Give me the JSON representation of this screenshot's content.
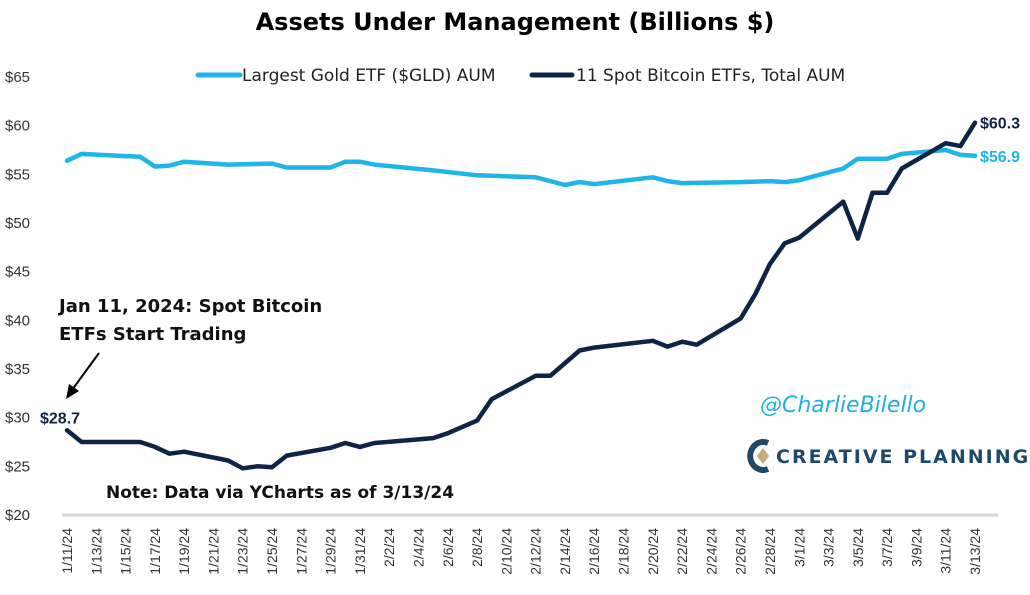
{
  "chart_data": {
    "type": "line",
    "title": "Assets Under Management (Billions $)",
    "xlabel": "",
    "ylabel": "",
    "ylim": [
      20,
      65
    ],
    "yticks": [
      "$20",
      "$25",
      "$30",
      "$35",
      "$40",
      "$45",
      "$50",
      "$55",
      "$60",
      "$65"
    ],
    "ytick_values": [
      20,
      25,
      30,
      35,
      40,
      45,
      50,
      55,
      60,
      65
    ],
    "x_unit": "days since 1/11/24",
    "xlim": [
      0,
      62
    ],
    "xticks": [
      "1/11/24",
      "1/13/24",
      "1/15/24",
      "1/17/24",
      "1/19/24",
      "1/21/24",
      "1/23/24",
      "1/25/24",
      "1/27/24",
      "1/29/24",
      "1/31/24",
      "2/2/24",
      "2/4/24",
      "2/6/24",
      "2/8/24",
      "2/10/24",
      "2/12/24",
      "2/14/24",
      "2/16/24",
      "2/18/24",
      "2/20/24",
      "2/22/24",
      "2/24/24",
      "2/26/24",
      "2/28/24",
      "3/1/24",
      "3/3/24",
      "3/5/24",
      "3/7/24",
      "3/9/24",
      "3/11/24",
      "3/13/24"
    ],
    "grid": false,
    "legend_position": "top",
    "series": [
      {
        "name": "Largest Gold ETF ($GLD) AUM",
        "color": "#1fb5e8",
        "end_label": "$56.9",
        "points": [
          [
            0,
            56.4
          ],
          [
            1,
            57.1
          ],
          [
            5,
            56.8
          ],
          [
            6,
            55.8
          ],
          [
            7,
            55.9
          ],
          [
            8,
            56.3
          ],
          [
            11,
            56.0
          ],
          [
            14,
            56.1
          ],
          [
            15,
            55.7
          ],
          [
            18,
            55.7
          ],
          [
            19,
            56.3
          ],
          [
            20,
            56.3
          ],
          [
            21,
            56.0
          ],
          [
            25,
            55.4
          ],
          [
            28,
            54.9
          ],
          [
            32,
            54.7
          ],
          [
            33,
            54.3
          ],
          [
            34,
            53.9
          ],
          [
            35,
            54.2
          ],
          [
            36,
            54.0
          ],
          [
            40,
            54.7
          ],
          [
            41,
            54.3
          ],
          [
            42,
            54.1
          ],
          [
            46,
            54.2
          ],
          [
            48,
            54.3
          ],
          [
            49,
            54.2
          ],
          [
            50,
            54.4
          ],
          [
            53,
            55.6
          ],
          [
            54,
            56.6
          ],
          [
            56,
            56.6
          ],
          [
            57,
            57.1
          ],
          [
            60,
            57.5
          ],
          [
            61,
            57.0
          ],
          [
            62,
            56.9
          ]
        ]
      },
      {
        "name": "11 Spot Bitcoin ETFs, Total AUM",
        "color": "#0d2447",
        "start_label": "$28.7",
        "end_label": "$60.3",
        "points": [
          [
            0,
            28.7
          ],
          [
            1,
            27.5
          ],
          [
            5,
            27.5
          ],
          [
            6,
            27.0
          ],
          [
            7,
            26.3
          ],
          [
            8,
            26.5
          ],
          [
            11,
            25.6
          ],
          [
            12,
            24.8
          ],
          [
            13,
            25.0
          ],
          [
            14,
            24.9
          ],
          [
            15,
            26.1
          ],
          [
            18,
            26.9
          ],
          [
            19,
            27.4
          ],
          [
            20,
            27.0
          ],
          [
            21,
            27.4
          ],
          [
            25,
            27.9
          ],
          [
            26,
            28.4
          ],
          [
            28,
            29.7
          ],
          [
            29,
            31.9
          ],
          [
            32,
            34.3
          ],
          [
            33,
            34.3
          ],
          [
            35,
            36.9
          ],
          [
            36,
            37.2
          ],
          [
            40,
            37.9
          ],
          [
            41,
            37.3
          ],
          [
            42,
            37.8
          ],
          [
            43,
            37.5
          ],
          [
            46,
            40.2
          ],
          [
            47,
            42.7
          ],
          [
            48,
            45.8
          ],
          [
            49,
            47.9
          ],
          [
            50,
            48.5
          ],
          [
            53,
            52.2
          ],
          [
            54,
            48.4
          ],
          [
            55,
            53.1
          ],
          [
            56,
            53.1
          ],
          [
            57,
            55.6
          ],
          [
            60,
            58.2
          ],
          [
            61,
            57.9
          ],
          [
            62,
            60.3
          ]
        ]
      }
    ],
    "annotations": {
      "launch_line1": "Jan 11, 2024: Spot Bitcoin",
      "launch_line2": "ETFs Start Trading",
      "note": "Note: Data via YCharts as of 3/13/24"
    }
  },
  "branding": {
    "handle": "@CharlieBilello",
    "logo_text": "CREATIVE PLANNING"
  }
}
